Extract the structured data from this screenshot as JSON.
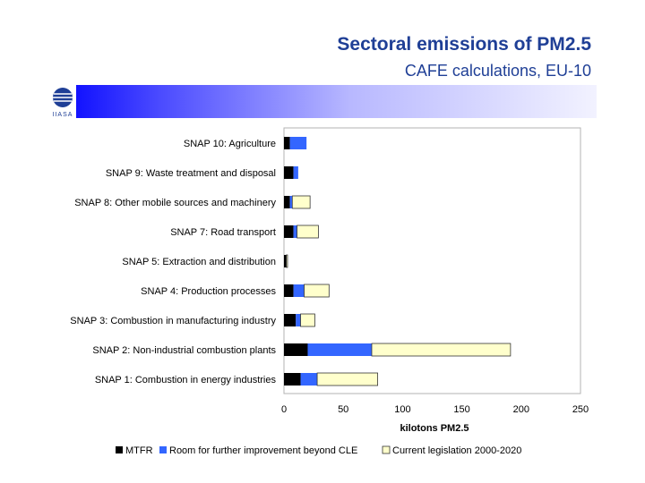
{
  "header": {
    "title": "Sectoral emissions of PM2.5",
    "subtitle": "CAFE calculations, EU-10",
    "logo_text": "IIASA"
  },
  "colors": {
    "accent": "#1f3f96",
    "banner_start": "#0000ff",
    "banner_end": "#f2f2ff"
  },
  "chart_data": {
    "type": "bar",
    "orientation": "horizontal",
    "stacked": true,
    "categories": [
      "SNAP 10: Agriculture",
      "SNAP 9: Waste treatment and disposal",
      "SNAP 8: Other mobile sources and machinery",
      "SNAP 7: Road transport",
      "SNAP 5: Extraction and distribution",
      "SNAP 4: Production processes",
      "SNAP 3: Combustion in manufacturing industry",
      "SNAP 2: Non-industrial combustion plants",
      "SNAP 1: Combustion in energy industries"
    ],
    "series": [
      {
        "name": "MTFR",
        "color": "#000000",
        "values": [
          5,
          8,
          5,
          8,
          2,
          8,
          10,
          20,
          14
        ]
      },
      {
        "name": "Room for further improvement beyond CLE",
        "color": "#3366ff",
        "values": [
          14,
          4,
          2,
          3,
          0,
          9,
          4,
          54,
          14
        ]
      },
      {
        "name": "Current legislation 2000-2020",
        "color": "#ffffcc",
        "values": [
          0,
          0,
          15,
          18,
          1,
          21,
          12,
          117,
          51
        ]
      }
    ],
    "xlabel": "kilotons PM2.5",
    "xlim": [
      0,
      250
    ],
    "xticks": [
      "0",
      "50",
      "100",
      "150",
      "200",
      "250"
    ],
    "grid": false,
    "legend_position": "bottom"
  }
}
